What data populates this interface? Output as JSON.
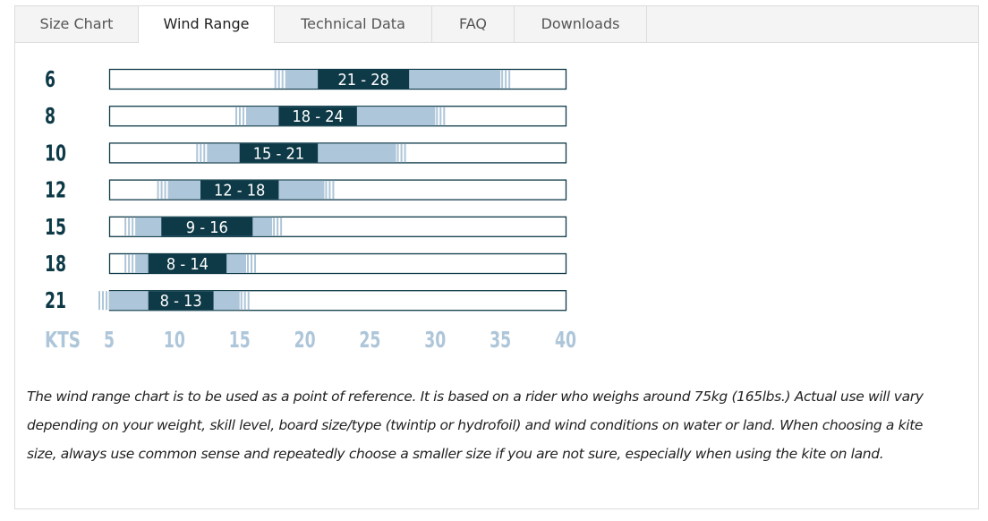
{
  "tabs": [
    {
      "label": "Size Chart",
      "active": false
    },
    {
      "label": "Wind Range",
      "active": true
    },
    {
      "label": "Technical Data",
      "active": false
    },
    {
      "label": "FAQ",
      "active": false
    },
    {
      "label": "Downloads",
      "active": false
    }
  ],
  "colors": {
    "core": "#0e3a48",
    "extended": "#aec6d9",
    "outline": "#0e3a48",
    "axis_text": "#aec6d9",
    "size_text": "#0e3a48"
  },
  "chart_data": {
    "type": "bar",
    "orientation": "horizontal",
    "axis_label": "KTS",
    "x_ticks": [
      5,
      10,
      15,
      20,
      25,
      30,
      35,
      40
    ],
    "xlim": [
      5,
      40
    ],
    "rows": [
      {
        "size": "6",
        "label": "21 - 28",
        "core": [
          21,
          28
        ],
        "extended": [
          18.5,
          35
        ]
      },
      {
        "size": "8",
        "label": "18 - 24",
        "core": [
          18,
          24
        ],
        "extended": [
          15.5,
          30
        ]
      },
      {
        "size": "10",
        "label": "15 - 21",
        "core": [
          15,
          21
        ],
        "extended": [
          12.5,
          27
        ]
      },
      {
        "size": "12",
        "label": "12 - 18",
        "core": [
          12,
          18
        ],
        "extended": [
          9.5,
          21.5
        ]
      },
      {
        "size": "15",
        "label": "9 - 16",
        "core": [
          9,
          16
        ],
        "extended": [
          7,
          17.5
        ]
      },
      {
        "size": "18",
        "label": "8 - 14",
        "core": [
          8,
          14
        ],
        "extended": [
          7,
          15.5
        ]
      },
      {
        "size": "21",
        "label": "8 - 13",
        "core": [
          8,
          13
        ],
        "extended": [
          5,
          15
        ]
      }
    ]
  },
  "note": "The wind range chart is to be used as a point of reference. It is based on a rider who weighs around 75kg (165lbs.) Actual use will vary depending on your weight, skill level, board size/type (twintip or hydrofoil) and wind conditions on water or land. When choosing a kite size, always use common sense and repeatedly choose a smaller size if you are not sure, especially when using the kite on land."
}
